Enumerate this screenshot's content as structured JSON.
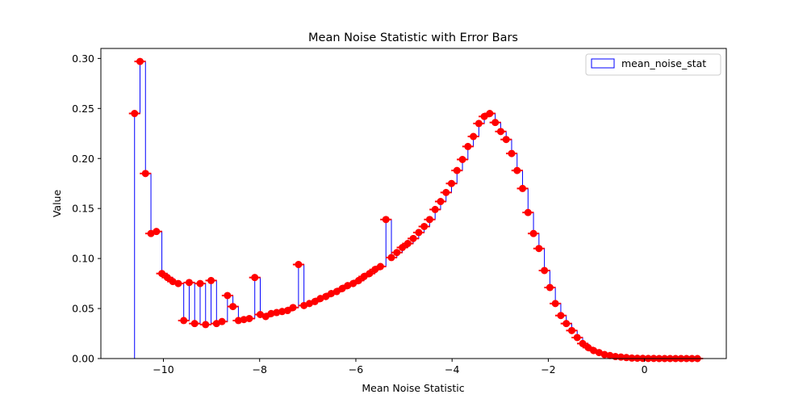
{
  "chart_data": {
    "type": "step",
    "title": "Mean Noise Statistic with Error Bars",
    "xlabel": "Mean Noise Statistic",
    "ylabel": "Value",
    "xlim": [
      -11.3,
      1.7
    ],
    "ylim": [
      0,
      0.31
    ],
    "xticks": [
      -10,
      -8,
      -6,
      -4,
      -2,
      0
    ],
    "xtick_labels": [
      "−10",
      "−8",
      "−6",
      "−4",
      "−2",
      "0"
    ],
    "yticks": [
      0.0,
      0.05,
      0.1,
      0.15,
      0.2,
      0.25,
      0.3
    ],
    "ytick_labels": [
      "0.00",
      "0.05",
      "0.10",
      "0.15",
      "0.20",
      "0.25",
      "0.30"
    ],
    "grid": false,
    "legend_position": "top-right",
    "series": [
      {
        "name": "mean_noise_stat",
        "step_color": "#0000ff",
        "marker_color": "#ff0000",
        "x_start": -10.6,
        "x_end": 1.1,
        "values": [
          0.245,
          0.297,
          0.185,
          0.125,
          0.127,
          0.085,
          0.081,
          0.077,
          0.075,
          0.038,
          0.076,
          0.035,
          0.075,
          0.034,
          0.078,
          0.035,
          0.037,
          0.063,
          0.052,
          0.038,
          0.039,
          0.04,
          0.081,
          0.044,
          0.042,
          0.045,
          0.046,
          0.047,
          0.048,
          0.051,
          0.094,
          0.053,
          0.055,
          0.057,
          0.06,
          0.062,
          0.065,
          0.067,
          0.07,
          0.073,
          0.075,
          0.078,
          0.082,
          0.085,
          0.089,
          0.092,
          0.139,
          0.101,
          0.106,
          0.111,
          0.115,
          0.12,
          0.126,
          0.132,
          0.139,
          0.149,
          0.157,
          0.166,
          0.175,
          0.188,
          0.199,
          0.212,
          0.222,
          0.235,
          0.242,
          0.245,
          0.236,
          0.227,
          0.219,
          0.205,
          0.188,
          0.17,
          0.146,
          0.125,
          0.11,
          0.088,
          0.071,
          0.055,
          0.043,
          0.035,
          0.028,
          0.021,
          0.015,
          0.011,
          0.008,
          0.006,
          0.004,
          0.003,
          0.002,
          0.0015,
          0.001,
          0.0005,
          0.0003,
          0.0002,
          0.0001,
          0.0001,
          0.0,
          0.0,
          0.0,
          0.0,
          0.0,
          0.0,
          0.0,
          0.0
        ]
      }
    ]
  }
}
